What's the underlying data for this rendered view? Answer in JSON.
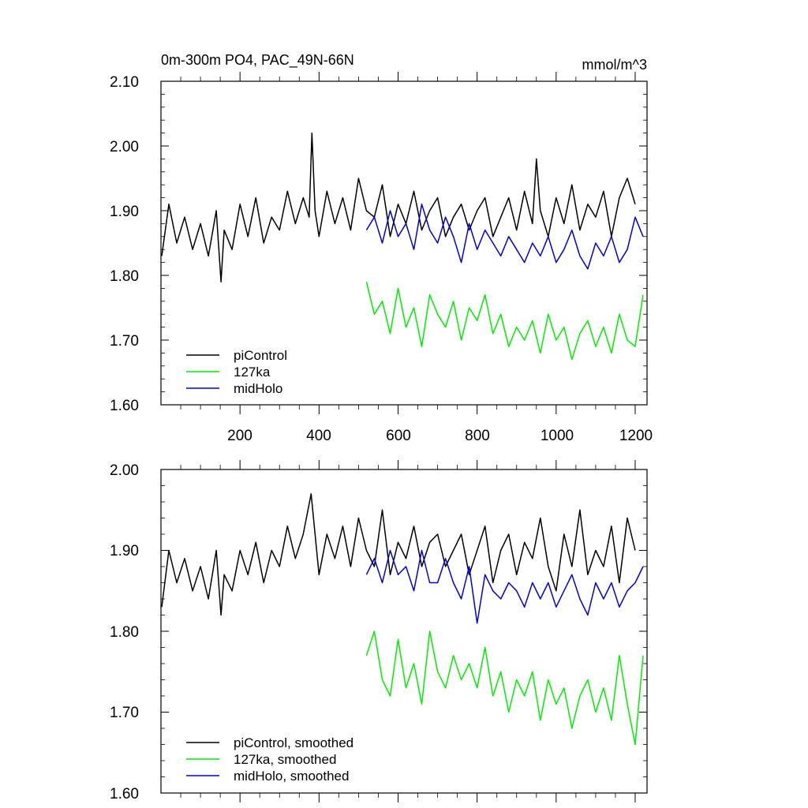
{
  "figure": {
    "title": "0m-300m PO4, PAC_49N-66N",
    "units": "mmol/m^3"
  },
  "colors": {
    "piControl": "#000000",
    "127ka": "#00ee00",
    "midHolo": "#0000dd"
  },
  "chart_data": [
    {
      "type": "line",
      "panel": "top",
      "title": "0m-300m PO4, PAC_49N-66N",
      "units": "mmol/m^3",
      "xlim": [
        0,
        1230
      ],
      "ylim": [
        1.6,
        2.1
      ],
      "x_ticks": [
        200,
        400,
        600,
        800,
        1000,
        1200
      ],
      "x_tick_labels": [
        "200",
        "400",
        "600",
        "800",
        "1000",
        "1200"
      ],
      "y_ticks": [
        1.6,
        1.7,
        1.8,
        1.9,
        2.0,
        2.1
      ],
      "y_tick_labels": [
        "1.60",
        "1.70",
        "1.80",
        "1.90",
        "2.00",
        "2.10"
      ],
      "legend": [
        "piControl",
        "127ka",
        "midHolo"
      ],
      "legend_position": "bottom-left",
      "series": [
        {
          "name": "piControl",
          "color_key": "piControl",
          "x": [
            2,
            20,
            40,
            60,
            80,
            100,
            120,
            140,
            152,
            160,
            180,
            200,
            220,
            240,
            260,
            280,
            300,
            320,
            340,
            360,
            375,
            382,
            390,
            400,
            420,
            440,
            460,
            480,
            500,
            520,
            540,
            560,
            580,
            600,
            620,
            640,
            660,
            680,
            700,
            720,
            740,
            760,
            780,
            800,
            820,
            840,
            860,
            880,
            900,
            920,
            940,
            950,
            960,
            980,
            1000,
            1020,
            1040,
            1060,
            1080,
            1100,
            1120,
            1140,
            1160,
            1180,
            1200
          ],
          "y": [
            1.83,
            1.91,
            1.85,
            1.89,
            1.84,
            1.88,
            1.83,
            1.9,
            1.79,
            1.87,
            1.84,
            1.91,
            1.86,
            1.92,
            1.85,
            1.89,
            1.87,
            1.93,
            1.88,
            1.92,
            1.89,
            2.02,
            1.9,
            1.86,
            1.93,
            1.88,
            1.92,
            1.87,
            1.95,
            1.9,
            1.89,
            1.94,
            1.86,
            1.91,
            1.88,
            1.93,
            1.87,
            1.9,
            1.92,
            1.86,
            1.89,
            1.91,
            1.87,
            1.9,
            1.92,
            1.86,
            1.89,
            1.92,
            1.87,
            1.93,
            1.88,
            1.98,
            1.9,
            1.86,
            1.92,
            1.88,
            1.94,
            1.87,
            1.91,
            1.89,
            1.93,
            1.86,
            1.92,
            1.95,
            1.91
          ]
        },
        {
          "name": "127ka",
          "color_key": "127ka",
          "x": [
            520,
            540,
            560,
            580,
            600,
            620,
            640,
            660,
            680,
            700,
            720,
            740,
            760,
            780,
            800,
            820,
            840,
            860,
            880,
            900,
            920,
            940,
            960,
            980,
            1000,
            1020,
            1040,
            1060,
            1080,
            1100,
            1120,
            1140,
            1160,
            1180,
            1200,
            1220
          ],
          "y": [
            1.79,
            1.74,
            1.76,
            1.71,
            1.78,
            1.72,
            1.75,
            1.69,
            1.77,
            1.74,
            1.72,
            1.76,
            1.7,
            1.75,
            1.73,
            1.77,
            1.71,
            1.74,
            1.69,
            1.72,
            1.7,
            1.73,
            1.68,
            1.74,
            1.7,
            1.72,
            1.67,
            1.71,
            1.73,
            1.69,
            1.72,
            1.68,
            1.74,
            1.7,
            1.69,
            1.77
          ]
        },
        {
          "name": "midHolo",
          "color_key": "midHolo",
          "x": [
            520,
            540,
            560,
            580,
            600,
            620,
            640,
            660,
            680,
            700,
            720,
            740,
            760,
            780,
            800,
            820,
            840,
            860,
            880,
            900,
            920,
            940,
            960,
            980,
            1000,
            1020,
            1040,
            1060,
            1080,
            1100,
            1120,
            1140,
            1160,
            1180,
            1200,
            1220
          ],
          "y": [
            1.87,
            1.89,
            1.85,
            1.9,
            1.86,
            1.88,
            1.84,
            1.91,
            1.87,
            1.85,
            1.89,
            1.86,
            1.82,
            1.88,
            1.84,
            1.87,
            1.85,
            1.83,
            1.86,
            1.84,
            1.82,
            1.85,
            1.83,
            1.86,
            1.82,
            1.84,
            1.87,
            1.83,
            1.81,
            1.85,
            1.83,
            1.86,
            1.82,
            1.84,
            1.89,
            1.86
          ]
        }
      ]
    },
    {
      "type": "line",
      "panel": "bottom",
      "xlim": [
        0,
        1230
      ],
      "ylim": [
        1.6,
        2.0
      ],
      "x_ticks": [
        200,
        400,
        600,
        800,
        1000,
        1200
      ],
      "y_ticks": [
        1.6,
        1.7,
        1.8,
        1.9,
        2.0
      ],
      "y_tick_labels": [
        "1.60",
        "1.70",
        "1.80",
        "1.90",
        "2.00"
      ],
      "legend": [
        "piControl, smoothed",
        "127ka, smoothed",
        "midHolo, smoothed"
      ],
      "legend_position": "bottom-left",
      "series": [
        {
          "name": "piControl, smoothed",
          "color_key": "piControl",
          "x": [
            2,
            20,
            40,
            60,
            80,
            100,
            120,
            140,
            152,
            160,
            180,
            200,
            220,
            240,
            260,
            280,
            300,
            320,
            340,
            360,
            380,
            400,
            420,
            440,
            460,
            480,
            500,
            520,
            540,
            560,
            580,
            600,
            620,
            640,
            660,
            680,
            700,
            720,
            740,
            760,
            780,
            800,
            820,
            840,
            860,
            880,
            900,
            920,
            940,
            960,
            980,
            1000,
            1020,
            1040,
            1060,
            1080,
            1100,
            1120,
            1140,
            1160,
            1180,
            1200
          ],
          "y": [
            1.83,
            1.9,
            1.86,
            1.89,
            1.85,
            1.88,
            1.84,
            1.9,
            1.82,
            1.87,
            1.85,
            1.9,
            1.87,
            1.91,
            1.86,
            1.9,
            1.88,
            1.93,
            1.89,
            1.92,
            1.97,
            1.87,
            1.92,
            1.89,
            1.93,
            1.88,
            1.94,
            1.9,
            1.88,
            1.95,
            1.87,
            1.91,
            1.89,
            1.93,
            1.88,
            1.91,
            1.92,
            1.88,
            1.9,
            1.92,
            1.87,
            1.9,
            1.93,
            1.86,
            1.9,
            1.92,
            1.87,
            1.91,
            1.89,
            1.94,
            1.88,
            1.85,
            1.92,
            1.88,
            1.95,
            1.87,
            1.9,
            1.88,
            1.93,
            1.86,
            1.94,
            1.9
          ]
        },
        {
          "name": "127ka, smoothed",
          "color_key": "127ka",
          "x": [
            520,
            540,
            560,
            580,
            600,
            620,
            640,
            660,
            680,
            700,
            720,
            740,
            760,
            780,
            800,
            820,
            840,
            860,
            880,
            900,
            920,
            940,
            960,
            980,
            1000,
            1020,
            1040,
            1060,
            1080,
            1100,
            1120,
            1140,
            1160,
            1180,
            1200,
            1220
          ],
          "y": [
            1.77,
            1.8,
            1.74,
            1.72,
            1.79,
            1.73,
            1.76,
            1.71,
            1.8,
            1.75,
            1.73,
            1.77,
            1.74,
            1.76,
            1.73,
            1.78,
            1.72,
            1.75,
            1.7,
            1.74,
            1.72,
            1.75,
            1.69,
            1.74,
            1.71,
            1.73,
            1.68,
            1.72,
            1.74,
            1.7,
            1.73,
            1.69,
            1.77,
            1.71,
            1.66,
            1.77
          ]
        },
        {
          "name": "midHolo, smoothed",
          "color_key": "midHolo",
          "x": [
            520,
            540,
            560,
            580,
            600,
            620,
            640,
            660,
            680,
            700,
            720,
            740,
            760,
            780,
            800,
            820,
            840,
            860,
            880,
            900,
            920,
            940,
            960,
            980,
            1000,
            1020,
            1040,
            1060,
            1080,
            1100,
            1120,
            1140,
            1160,
            1180,
            1200,
            1220
          ],
          "y": [
            1.87,
            1.89,
            1.86,
            1.9,
            1.87,
            1.88,
            1.85,
            1.9,
            1.86,
            1.86,
            1.89,
            1.86,
            1.84,
            1.88,
            1.81,
            1.87,
            1.85,
            1.84,
            1.86,
            1.85,
            1.83,
            1.86,
            1.84,
            1.86,
            1.83,
            1.85,
            1.87,
            1.84,
            1.82,
            1.86,
            1.84,
            1.86,
            1.83,
            1.85,
            1.86,
            1.88
          ]
        }
      ]
    }
  ]
}
